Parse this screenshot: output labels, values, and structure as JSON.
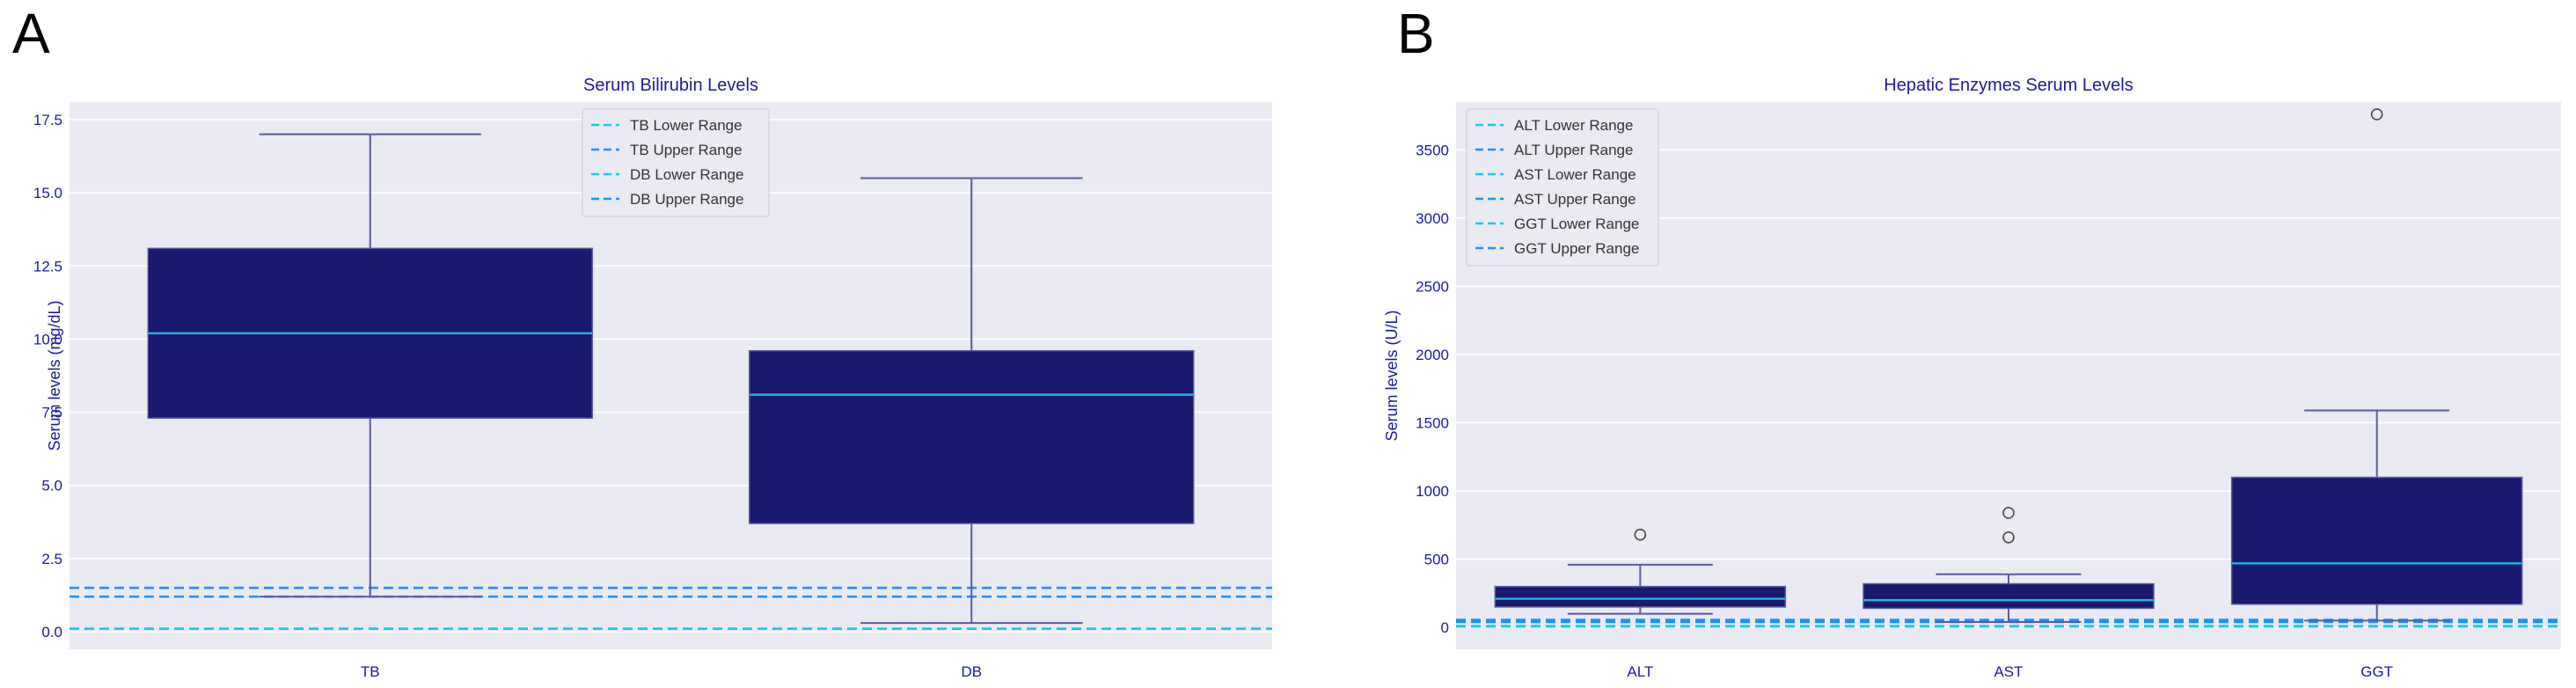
{
  "colors": {
    "plot_bg": "#eaeaf2",
    "grid": "#ffffff",
    "box_fill": "#191970",
    "whisker": "#5a5aa0",
    "median": "#1fb6e6",
    "lower_range": "#19c6f0",
    "upper_range": "#1e90ff",
    "text": "#1a1a9e"
  },
  "chart_data": [
    {
      "panel": "A",
      "type": "box",
      "title": "Serum Bilirubin Levels",
      "xlabel": "",
      "ylabel": "Serum levels (mg/dL)",
      "ylim": [
        -0.6,
        18.1
      ],
      "yticks": [
        0.0,
        2.5,
        5.0,
        7.5,
        10.0,
        12.5,
        15.0,
        17.5
      ],
      "ytick_labels": [
        "0.0",
        "2.5",
        "5.0",
        "7.5",
        "10.0",
        "12.5",
        "15.0",
        "17.5"
      ],
      "grid": true,
      "legend_position": "top-center",
      "categories": [
        "TB",
        "DB"
      ],
      "boxes": [
        {
          "name": "TB",
          "q1": 7.3,
          "median": 10.2,
          "q3": 13.1,
          "whisker_low": 1.2,
          "whisker_high": 17.0,
          "outliers": []
        },
        {
          "name": "DB",
          "q1": 3.7,
          "median": 8.1,
          "q3": 9.6,
          "whisker_low": 0.3,
          "whisker_high": 15.5,
          "outliers": []
        }
      ],
      "reference_lines": [
        {
          "label": "TB Lower Range",
          "value": 0.1,
          "kind": "lower"
        },
        {
          "label": "TB Upper Range",
          "value": 1.2,
          "kind": "upper"
        },
        {
          "label": "DB Lower Range",
          "value": 0.1,
          "kind": "lower"
        },
        {
          "label": "DB Upper Range",
          "value": 1.5,
          "kind": "upper"
        }
      ]
    },
    {
      "panel": "B",
      "type": "box",
      "title": "Hepatic Enzymes Serum Levels",
      "xlabel": "",
      "ylabel": "Serum levels (U/L)",
      "ylim": [
        -160,
        3850
      ],
      "yticks": [
        0,
        500,
        1000,
        1500,
        2000,
        2500,
        3000,
        3500
      ],
      "ytick_labels": [
        "0",
        "500",
        "1000",
        "1500",
        "2000",
        "2500",
        "3000",
        "3500"
      ],
      "grid": true,
      "legend_position": "top-left",
      "categories": [
        "ALT",
        "AST",
        "GGT"
      ],
      "boxes": [
        {
          "name": "ALT",
          "q1": 150,
          "median": 210,
          "q3": 300,
          "whisker_low": 100,
          "whisker_high": 460,
          "outliers": [
            680
          ]
        },
        {
          "name": "AST",
          "q1": 140,
          "median": 200,
          "q3": 320,
          "whisker_low": 40,
          "whisker_high": 390,
          "outliers": [
            660,
            840
          ]
        },
        {
          "name": "GGT",
          "q1": 170,
          "median": 470,
          "q3": 1100,
          "whisker_low": 50,
          "whisker_high": 1590,
          "outliers": [
            3760
          ]
        }
      ],
      "reference_lines": [
        {
          "label": "ALT Lower Range",
          "value": 7,
          "kind": "lower"
        },
        {
          "label": "ALT Upper Range",
          "value": 56,
          "kind": "upper"
        },
        {
          "label": "AST Lower Range",
          "value": 10,
          "kind": "lower"
        },
        {
          "label": "AST Upper Range",
          "value": 40,
          "kind": "upper"
        },
        {
          "label": "GGT Lower Range",
          "value": 9,
          "kind": "lower"
        },
        {
          "label": "GGT Upper Range",
          "value": 48,
          "kind": "upper"
        }
      ]
    }
  ]
}
